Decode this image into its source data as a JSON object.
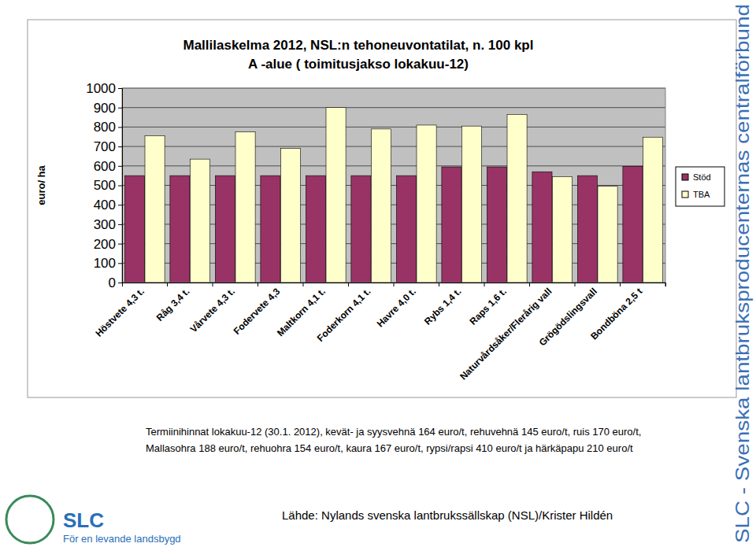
{
  "chart_data": {
    "type": "bar",
    "title": "Mallilaskelma  2012, NSL:n tehoneuvontatilat, n. 100 kpl",
    "subtitle": "A -alue ( toimitusjakso lokakuu-12)",
    "y_label": "euro/ ha",
    "categories": [
      "Höstvete 4,3 t.",
      "Råg 3,4 t.",
      "Vårvete 4,3 t.",
      "Fodervete 4,3",
      "Maltkorn 4,1 t.",
      "Foderkorn 4,1 t.",
      "Havre 4,0 t.",
      "Rybs 1,4 t.",
      "Raps 1,6 t.",
      "Naturvårdsåker/Flerårig vall",
      "Grögödslingsvall",
      "Bondböna 2,5 t"
    ],
    "series": [
      {
        "name": "Stöd",
        "color": "#993366",
        "values": [
          550,
          550,
          550,
          550,
          550,
          550,
          550,
          595,
          595,
          570,
          550,
          598
        ]
      },
      {
        "name": "TBA",
        "color": "#ffffcc",
        "values": [
          755,
          635,
          775,
          690,
          900,
          790,
          810,
          805,
          865,
          545,
          495,
          748
        ]
      }
    ],
    "ylim": [
      0,
      1000
    ],
    "yticks": [
      0,
      100,
      200,
      300,
      400,
      500,
      600,
      700,
      800,
      900,
      1000
    ],
    "grid": true,
    "legend": "right",
    "annotations": [
      "Termiinihinnat lokakuu-12 (30.1. 2012), kevät- ja syysvehnä 164 euro/t, rehuvehnä 145 euro/t, ruis 170 euro/t,",
      "Mallasohra 188 euro/t, rehuohra 154 euro/t, kaura 167 euro/t, rypsi/rapsi 410 euro/t ja härkäpapu 210 euro/t",
      "Lähde: Nylands svenska lantbrukssällskap (NSL)/Krister Hildén",
      "SLC",
      "För en levande landsbygd",
      "SLC - Svenska lantbruksproducenternas centralförbund"
    ]
  }
}
